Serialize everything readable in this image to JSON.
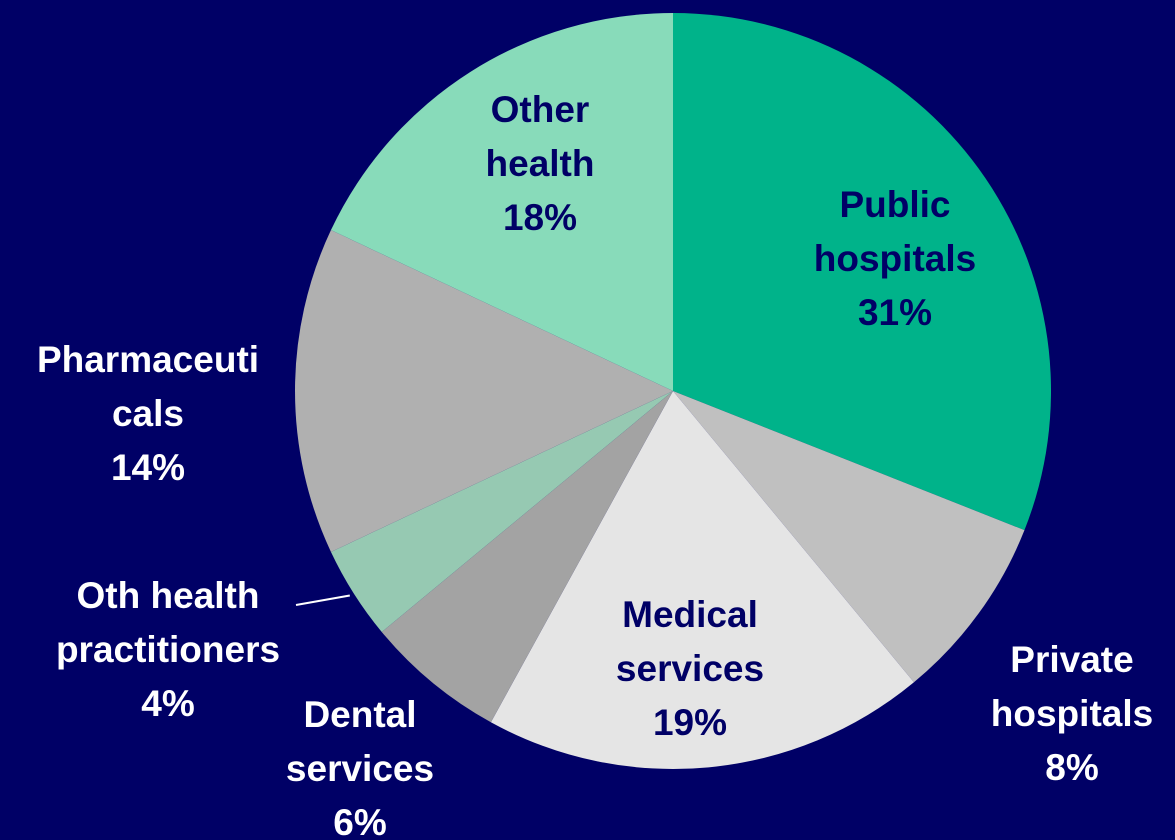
{
  "chart_data": {
    "type": "pie",
    "title": "",
    "slices": [
      {
        "label": "Public hospitals",
        "value": 31,
        "display": "31%",
        "color": "#00b38a",
        "label_color": "#000066",
        "label_lines": [
          "Public",
          "hospitals",
          "31%"
        ]
      },
      {
        "label": "Private hospitals",
        "value": 8,
        "display": "8%",
        "color": "#c0c0c0",
        "label_color": "#ffffff",
        "label_lines": [
          "Private",
          "hospitals",
          "8%"
        ]
      },
      {
        "label": "Medical services",
        "value": 19,
        "display": "19%",
        "color": "#e5e5e5",
        "label_color": "#000066",
        "label_lines": [
          "Medical",
          "services",
          "19%"
        ]
      },
      {
        "label": "Dental services",
        "value": 6,
        "display": "6%",
        "color": "#a3a3a3",
        "label_color": "#ffffff",
        "label_lines": [
          "Dental",
          "services",
          "6%"
        ]
      },
      {
        "label": "Oth health practitioners",
        "value": 4,
        "display": "4%",
        "color": "#96c9b2",
        "label_color": "#ffffff",
        "label_lines": [
          "Oth health",
          "practitioners",
          "4%"
        ]
      },
      {
        "label": "Pharmaceuticals",
        "value": 14,
        "display": "14%",
        "color": "#b0b0b0",
        "label_color": "#ffffff",
        "label_lines": [
          "Pharmaceuti",
          "cals",
          "14%"
        ]
      },
      {
        "label": "Other health",
        "value": 18,
        "display": "18%",
        "color": "#88dbba",
        "label_color": "#000066",
        "label_lines": [
          "Other",
          "health",
          "18%"
        ]
      }
    ],
    "start_angle": "12 o'clock",
    "direction": "clockwise",
    "legend": "none",
    "background_color": "#000066"
  }
}
